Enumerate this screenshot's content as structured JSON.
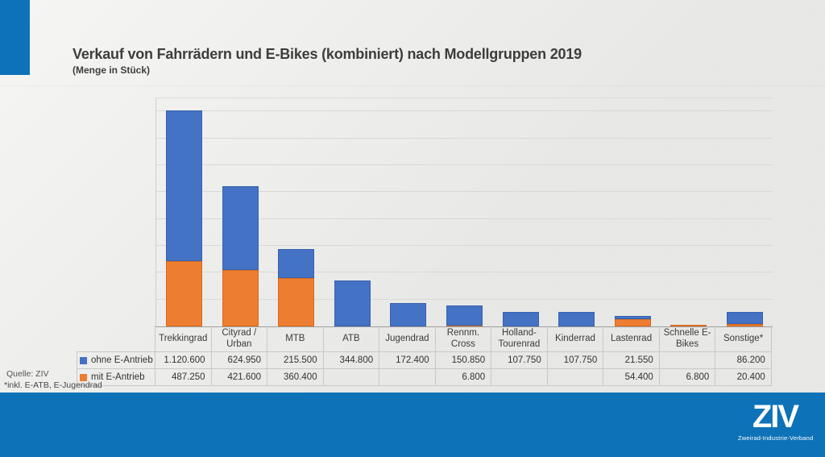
{
  "slide": {
    "title": "Verkauf von Fahrrädern und E-Bikes (kombiniert) nach Modellgruppen 2019",
    "subtitle": "(Menge in Stück)",
    "source": "Quelle: ZIV",
    "footnote": "*inkl. E-ATB, E-Jugendrad"
  },
  "logo": {
    "text": "ZIV",
    "tagline": "Zweirad-Industrie-Verband"
  },
  "colors": {
    "brand_blue": "#0E72B8",
    "series_ohne_fill": "#4472C4",
    "series_ohne_border": "#3A62AE",
    "series_mit_fill": "#ED7D31",
    "series_mit_border": "#D96B20"
  },
  "chart_data": {
    "type": "bar",
    "stacked": true,
    "title": "Verkauf von Fahrrädern und E-Bikes (kombiniert) nach Modellgruppen 2019",
    "subtitle": "(Menge in Stück)",
    "xlabel": "",
    "ylabel": "Menge in Stück",
    "ylim": [
      0,
      1698000
    ],
    "gridline_step": 200000,
    "grid": true,
    "legend_position": "table-left",
    "categories": [
      "Trekkingrad",
      "Cityrad / Urban",
      "MTB",
      "ATB",
      "Jugendrad",
      "Rennm. Cross",
      "Holland-Tourenrad",
      "Kinderrad",
      "Lastenrad",
      "Schnelle E-Bikes",
      "Sonstige*"
    ],
    "series": [
      {
        "name": "ohne E-Antrieb",
        "color": "#4472C4",
        "values": [
          1120600,
          624950,
          215500,
          344800,
          172400,
          150850,
          107750,
          107750,
          21550,
          null,
          86200
        ]
      },
      {
        "name": "mit E-Antrieb",
        "color": "#ED7D31",
        "values": [
          487250,
          421600,
          360400,
          null,
          null,
          6800,
          null,
          null,
          54400,
          6800,
          20400
        ]
      }
    ]
  }
}
